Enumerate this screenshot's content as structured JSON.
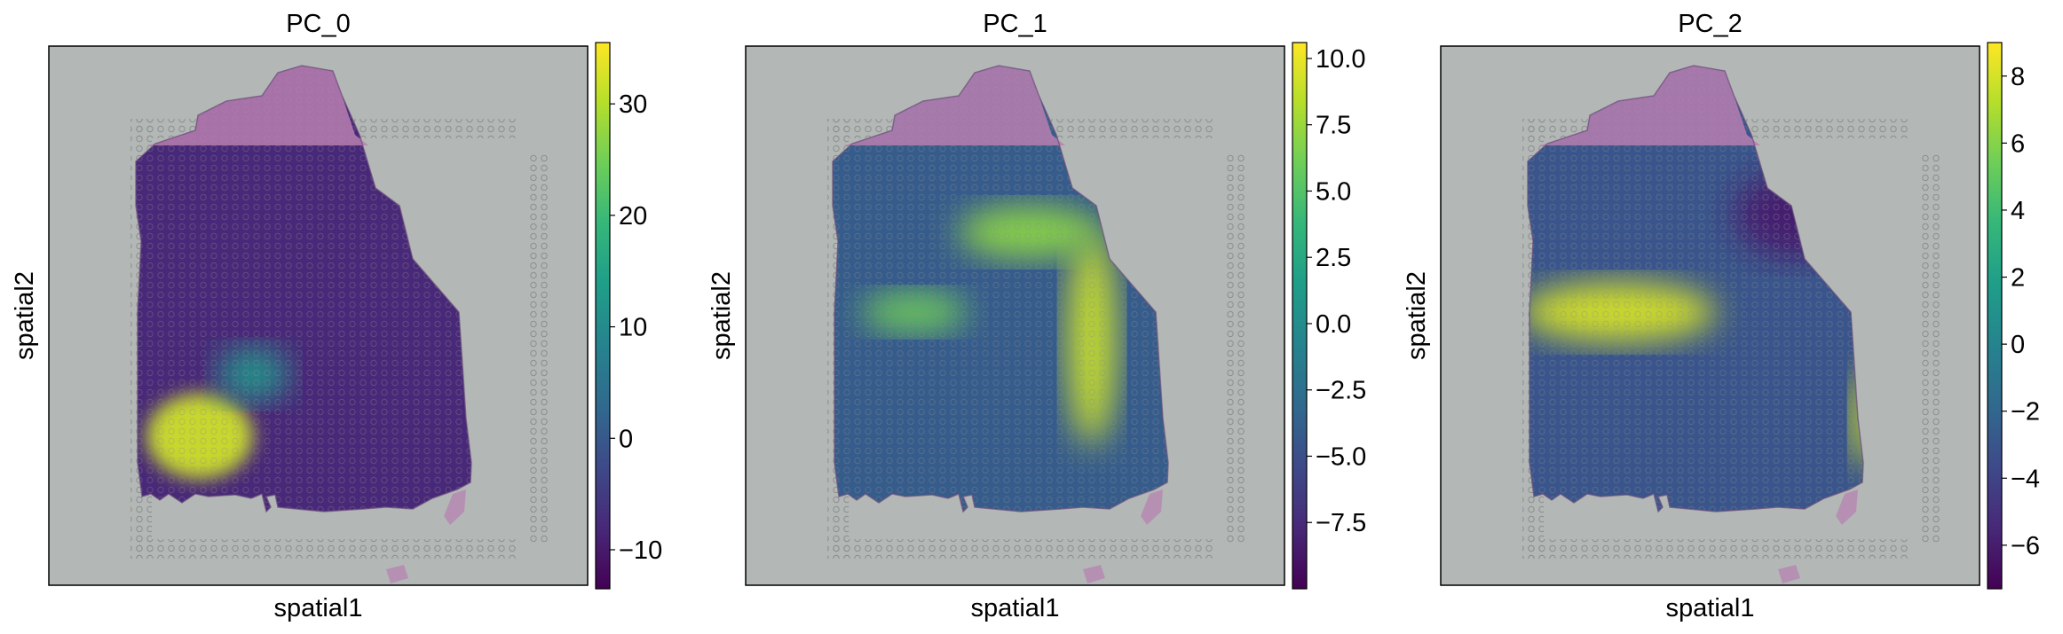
{
  "chart_data": [
    {
      "type": "heatmap",
      "title": "PC_0",
      "xlabel": "spatial1",
      "ylabel": "spatial2",
      "colormap": "viridis",
      "colorbar": {
        "vmin": -13.5,
        "vmax": 35.5,
        "ticks": [
          -10,
          0,
          10,
          20,
          30
        ],
        "tick_labels": [
          "−10",
          "0",
          "10",
          "20",
          "30"
        ]
      },
      "hotspots": [
        {
          "region": "lower-left tissue block",
          "value": 32
        },
        {
          "region": "left-center band",
          "value": 12
        }
      ],
      "background_value": -8
    },
    {
      "type": "heatmap",
      "title": "PC_1",
      "xlabel": "spatial1",
      "ylabel": "spatial2",
      "colormap": "viridis",
      "colorbar": {
        "vmin": -10,
        "vmax": 10.6,
        "ticks": [
          -7.5,
          -5.0,
          -2.5,
          0.0,
          2.5,
          5.0,
          7.5,
          10.0
        ],
        "tick_labels": [
          "−7.5",
          "−5.0",
          "−2.5",
          "0.0",
          "2.5",
          "5.0",
          "7.5",
          "10.0"
        ]
      },
      "hotspots": [
        {
          "region": "central vertical band",
          "value": 9
        },
        {
          "region": "upper-center arc",
          "value": 7
        },
        {
          "region": "left band",
          "value": 6
        }
      ],
      "background_value": -4
    },
    {
      "type": "heatmap",
      "title": "PC_2",
      "xlabel": "spatial1",
      "ylabel": "spatial2",
      "colormap": "viridis",
      "colorbar": {
        "vmin": -7.3,
        "vmax": 9,
        "ticks": [
          -6,
          -4,
          -2,
          0,
          2,
          4,
          6,
          8
        ],
        "tick_labels": [
          "−6",
          "−4",
          "−2",
          "0",
          "2",
          "4",
          "6",
          "8"
        ]
      },
      "hotspots": [
        {
          "region": "left arc band",
          "value": 8
        },
        {
          "region": "right lower strip",
          "value": 8
        },
        {
          "region": "upper-right region",
          "value": -6
        }
      ],
      "background_value": -3
    }
  ],
  "colors": {
    "background_slide": "#b3b8b6",
    "tissue_top_stain": "#b87fb0",
    "viridis": [
      "#440154",
      "#482878",
      "#3e4989",
      "#31688e",
      "#26828e",
      "#1f9e89",
      "#35b779",
      "#6ece58",
      "#b5de2b",
      "#fde725"
    ]
  }
}
